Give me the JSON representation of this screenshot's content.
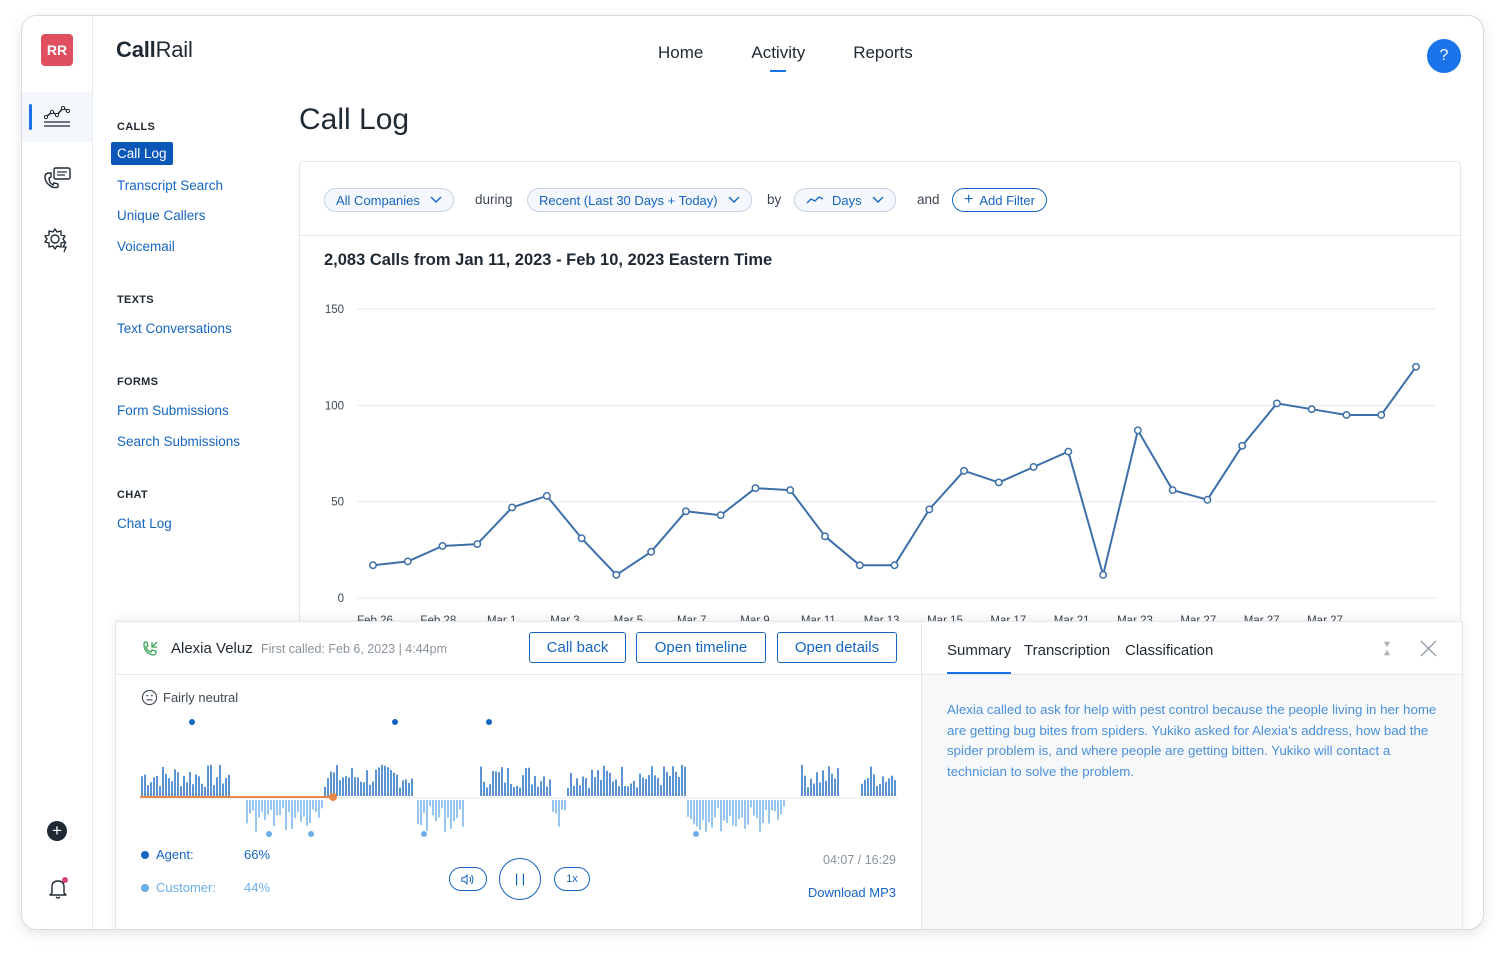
{
  "app": {
    "brand_prefix": "Call",
    "brand_suffix": "Rail",
    "account_initials": "RR",
    "help_label": "?"
  },
  "nav": {
    "links": [
      {
        "label": "Home"
      },
      {
        "label": "Activity",
        "active": true
      },
      {
        "label": "Reports"
      }
    ]
  },
  "sidebar": {
    "sections": [
      {
        "heading": "CALLS",
        "items": [
          "Call Log",
          "Transcript Search",
          "Unique Callers",
          "Voicemail"
        ]
      },
      {
        "heading": "TEXTS",
        "items": [
          "Text Conversations"
        ]
      },
      {
        "heading": "FORMS",
        "items": [
          "Form Submissions",
          "Search Submissions"
        ]
      },
      {
        "heading": "CHAT",
        "items": [
          "Chat Log"
        ]
      }
    ],
    "active_item": "Call Log"
  },
  "page": {
    "title": "Call Log"
  },
  "filters": {
    "company": "All Companies",
    "during_label": "during",
    "range": "Recent (Last 30 Days + Today)",
    "by_label": "by",
    "granularity": "Days",
    "and_label": "and",
    "add_filter": "Add Filter"
  },
  "chart_title": "2,083 Calls from Jan 11, 2023 - Feb 10, 2023 Eastern Time",
  "chart_data": {
    "type": "line",
    "x_tick_labels": [
      "Feb 26",
      "Feb 28",
      "Mar 1",
      "Mar 3",
      "Mar 5",
      "Mar 7",
      "Mar 9",
      "Mar 11",
      "Mar 13",
      "Mar 15",
      "Mar 17",
      "Mar 21",
      "Mar 23",
      "Mar 27",
      "Mar 27",
      "Mar 27"
    ],
    "y_ticks": [
      0,
      50,
      100,
      150
    ],
    "ylim": [
      0,
      150
    ],
    "values": [
      17,
      19,
      27,
      28,
      47,
      53,
      31,
      12,
      24,
      45,
      43,
      57,
      56,
      32,
      17,
      17,
      46,
      66,
      60,
      68,
      76,
      12,
      87,
      56,
      51,
      79,
      101,
      98,
      95,
      95,
      120
    ],
    "color": "#3d6fa8",
    "grid": true
  },
  "call": {
    "caller": "Alexia Veluz",
    "first_called": "First called: Feb 6, 2023 | 4:44pm",
    "buttons": {
      "call_back": "Call back",
      "open_timeline": "Open timeline",
      "open_details": "Open details"
    },
    "sentiment": "Fairly neutral",
    "agent_label": "Agent:",
    "agent_pct": "66%",
    "customer_label": "Customer:",
    "customer_pct": "44%",
    "speed": "1x",
    "elapsed": "04:07 / 16:29",
    "download": "Download MP3",
    "progress": 0.25,
    "agent_color": "#1565c0",
    "customer_color": "#6aaeea",
    "progress_color": "#e8894a"
  },
  "details": {
    "tabs": [
      "Summary",
      "Transcription",
      "Classification"
    ],
    "summary": "Alexia called to ask for help with pest control because the people living in her home are getting bug bites from spiders. Yukiko asked for Alexia's address, how bad the spider problem is, and where people are getting bitten. Yukiko will contact a technician to solve the problem."
  }
}
